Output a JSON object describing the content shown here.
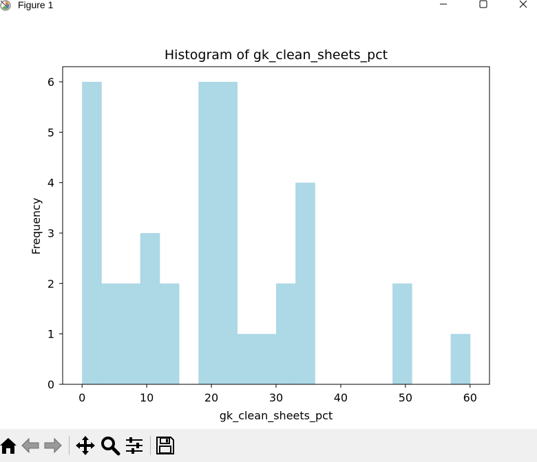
{
  "window": {
    "title": "Figure 1",
    "controls": {
      "minimize_icon": "minimize-icon",
      "maximize_icon": "maximize-icon",
      "close_icon": "close-icon"
    }
  },
  "toolbar": {
    "buttons": [
      "home-icon",
      "back-arrow-icon",
      "forward-arrow-icon",
      "pan-icon",
      "zoom-icon",
      "configure-subplots-icon",
      "save-icon"
    ]
  },
  "colors": {
    "bar": "#add8e6",
    "axes": "#000000",
    "toolbar_bg": "#f0f0f0"
  },
  "chart_data": {
    "type": "bar",
    "title": "Histogram of gk_clean_sheets_pct",
    "xlabel": "gk_clean_sheets_pct",
    "ylabel": "Frequency",
    "bins": [
      {
        "x0": 0,
        "x1": 3,
        "count": 6
      },
      {
        "x0": 3,
        "x1": 6,
        "count": 2
      },
      {
        "x0": 6,
        "x1": 9,
        "count": 2
      },
      {
        "x0": 9,
        "x1": 12,
        "count": 3
      },
      {
        "x0": 12,
        "x1": 15,
        "count": 2
      },
      {
        "x0": 15,
        "x1": 18,
        "count": 0
      },
      {
        "x0": 18,
        "x1": 21,
        "count": 6
      },
      {
        "x0": 21,
        "x1": 24,
        "count": 6
      },
      {
        "x0": 24,
        "x1": 27,
        "count": 1
      },
      {
        "x0": 27,
        "x1": 30,
        "count": 1
      },
      {
        "x0": 30,
        "x1": 33,
        "count": 2
      },
      {
        "x0": 33,
        "x1": 36,
        "count": 4
      },
      {
        "x0": 36,
        "x1": 39,
        "count": 0
      },
      {
        "x0": 39,
        "x1": 42,
        "count": 0
      },
      {
        "x0": 42,
        "x1": 45,
        "count": 0
      },
      {
        "x0": 45,
        "x1": 48,
        "count": 0
      },
      {
        "x0": 48,
        "x1": 51,
        "count": 2
      },
      {
        "x0": 51,
        "x1": 54,
        "count": 0
      },
      {
        "x0": 54,
        "x1": 57,
        "count": 0
      },
      {
        "x0": 57,
        "x1": 60,
        "count": 1
      }
    ],
    "xlim": [
      -3,
      63
    ],
    "ylim": [
      0,
      6.3
    ],
    "xticks": [
      0,
      10,
      20,
      30,
      40,
      50,
      60
    ],
    "yticks": [
      0,
      1,
      2,
      3,
      4,
      5,
      6
    ],
    "grid": false,
    "legend": false
  }
}
